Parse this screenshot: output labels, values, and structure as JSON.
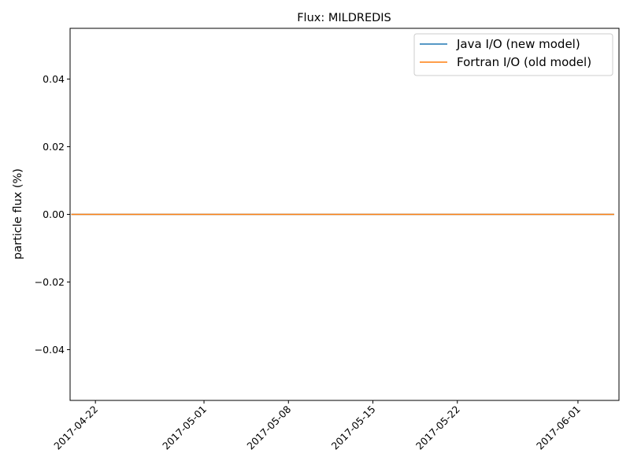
{
  "chart_data": {
    "type": "line",
    "title": "Flux: MILDREDIS",
    "xlabel": "",
    "ylabel": "particle flux (%)",
    "x_type": "date",
    "xlim": [
      "2017-04-19.9",
      "2017-06-04.4"
    ],
    "ylim": [
      -0.055,
      0.055
    ],
    "x_ticks": [
      "2017-04-22",
      "2017-05-01",
      "2017-05-08",
      "2017-05-15",
      "2017-05-22",
      "2017-06-01"
    ],
    "y_ticks": [
      {
        "value": -0.04,
        "label": "−0.04"
      },
      {
        "value": -0.02,
        "label": "−0.02"
      },
      {
        "value": 0.0,
        "label": "0.00"
      },
      {
        "value": 0.02,
        "label": "0.02"
      },
      {
        "value": 0.04,
        "label": "0.04"
      }
    ],
    "grid": false,
    "legend_position": "top-right",
    "series": [
      {
        "name": "Java I/O (new model)",
        "color": "#1f77b4",
        "x": [
          "2017-04-20",
          "2017-06-04"
        ],
        "y": [
          0.0,
          0.0
        ]
      },
      {
        "name": "Fortran I/O (old model)",
        "color": "#ff7f0e",
        "x": [
          "2017-04-20",
          "2017-06-04"
        ],
        "y": [
          0.0,
          0.0
        ]
      }
    ]
  }
}
